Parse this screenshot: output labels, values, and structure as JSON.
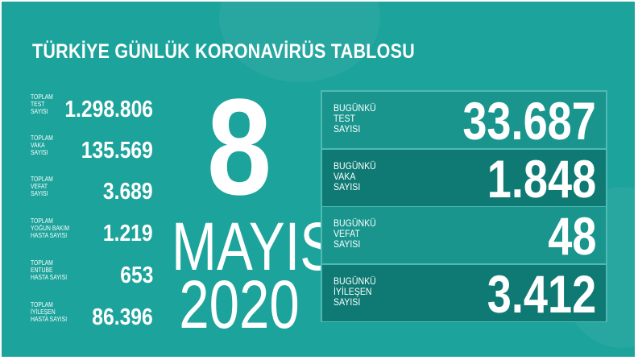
{
  "title": "TÜRKİYE GÜNLÜK KORONAVİRÜS TABLOSU",
  "colors": {
    "background": "#1ca39b",
    "row_light": "#19958e",
    "row_dark": "#0f7a74"
  },
  "totals": [
    {
      "label": [
        "TOPLAM",
        "TEST",
        "SAYISI"
      ],
      "value": "1.298.806"
    },
    {
      "label": [
        "TOPLAM",
        "VAKA",
        "SAYISI"
      ],
      "value": "135.569"
    },
    {
      "label": [
        "TOPLAM",
        "VEFAT",
        "SAYISI"
      ],
      "value": "3.689"
    },
    {
      "label": [
        "TOPLAM",
        "YOĞUN BAKIM",
        "HASTA SAYISI"
      ],
      "value": "1.219"
    },
    {
      "label": [
        "TOPLAM",
        "ENTUBE",
        "HASTA SAYISI"
      ],
      "value": "653"
    },
    {
      "label": [
        "TOPLAM",
        "İYİLEŞEN",
        "HASTA SAYISI"
      ],
      "value": "86.396"
    }
  ],
  "date": {
    "day": "8",
    "month": "MAYIS",
    "year": "2020"
  },
  "today": [
    {
      "label": [
        "BUGÜNKÜ",
        "TEST",
        "SAYISI"
      ],
      "value": "33.687"
    },
    {
      "label": [
        "BUGÜNKÜ",
        "VAKA",
        "SAYISI"
      ],
      "value": "1.848"
    },
    {
      "label": [
        "BUGÜNKÜ",
        "VEFAT",
        "SAYISI"
      ],
      "value": "48"
    },
    {
      "label": [
        "BUGÜNKÜ",
        "İYİLEŞEN",
        "SAYISI"
      ],
      "value": "3.412"
    }
  ]
}
